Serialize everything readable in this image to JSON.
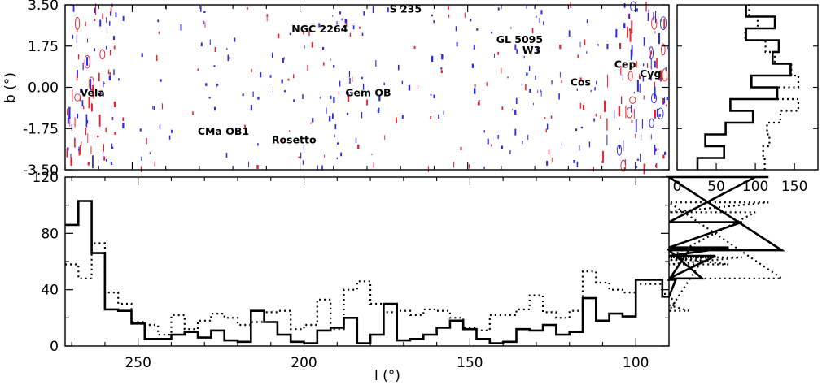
{
  "chart_data": [
    {
      "type": "contour map",
      "xlabel": "",
      "ylabel": "b (°)",
      "xlim": [
        270,
        90
      ],
      "ylim": [
        -3.5,
        3.5
      ],
      "y_ticks": [
        "3.50",
        "1.75",
        "0.00",
        "-1.75",
        "-3.50"
      ],
      "y_tick_values": [
        3.5,
        1.75,
        0,
        -1.75,
        -3.5
      ],
      "colors": {
        "series_a": "#e8202a",
        "series_b": "#2a2ae0"
      },
      "annotations": [
        {
          "text": "Vela",
          "l": 265.5,
          "b": -0.2
        },
        {
          "text": "NGC 2264",
          "l": 202.5,
          "b": 2.5
        },
        {
          "text": "S 235",
          "l": 173.3,
          "b": 3.35
        },
        {
          "text": "GL 5095",
          "l": 141.5,
          "b": 2.05
        },
        {
          "text": "W3",
          "l": 133.7,
          "b": 1.6
        },
        {
          "text": "Gem OB",
          "l": 186.5,
          "b": -0.2
        },
        {
          "text": "CMa OB1",
          "l": 230.5,
          "b": -1.85
        },
        {
          "text": "Rosetto",
          "l": 208.4,
          "b": -2.2
        },
        {
          "text": "Cos",
          "l": 119.4,
          "b": 0.25
        },
        {
          "text": "Cep",
          "l": 106.3,
          "b": 1.0
        },
        {
          "text": "Cyg",
          "l": 98.7,
          "b": 0.6
        }
      ]
    },
    {
      "type": "histogram",
      "xlabel": "",
      "ylabel": "",
      "xlim": [
        0,
        180
      ],
      "ylim": [
        -3.5,
        3.5
      ],
      "x_ticks": [
        "0",
        "50",
        "100",
        "150"
      ],
      "x_tick_values": [
        0,
        50,
        100,
        150
      ],
      "bin_edges_b": [
        -3.5,
        -3.0,
        -2.5,
        -2.0,
        -1.5,
        -1.0,
        -0.5,
        0.0,
        0.5,
        1.0,
        1.5,
        2.0,
        2.5,
        3.0,
        3.5
      ],
      "series": [
        {
          "style": "solid",
          "values": [
            26,
            60,
            36,
            62,
            97,
            68,
            128,
            95,
            145,
            122,
            130,
            88,
            125,
            88
          ]
        },
        {
          "style": "dotted",
          "values": [
            112,
            110,
            118,
            115,
            132,
            155,
            128,
            155,
            146,
            125,
            113,
            87,
            103,
            92
          ]
        }
      ]
    },
    {
      "type": "histogram",
      "xlabel": "l (°)",
      "ylabel": "",
      "xlim": [
        272,
        90
      ],
      "ylim": [
        0,
        120
      ],
      "x_ticks": [
        "250",
        "200",
        "150",
        "100"
      ],
      "x_tick_values": [
        250,
        200,
        150,
        100
      ],
      "y_ticks": [
        "0",
        "40",
        "80",
        "120"
      ],
      "y_tick_values": [
        0,
        40,
        80,
        120
      ],
      "bin_width_deg": 4,
      "bin_start_deg": 272,
      "series": [
        {
          "style": "solid",
          "values": [
            86,
            103,
            66,
            26,
            25,
            16,
            5,
            5,
            8,
            10,
            6,
            11,
            4,
            3,
            25,
            17,
            8,
            3,
            2,
            11,
            13,
            20,
            2,
            8,
            30,
            4,
            5,
            8,
            13,
            18,
            12,
            5,
            2,
            3,
            12,
            11,
            15,
            8,
            10,
            34,
            18,
            23,
            21,
            47,
            47,
            35,
            47,
            68,
            48,
            64,
            70,
            88,
            140,
            140,
            68
          ]
        },
        {
          "style": "dotted",
          "values": [
            58,
            48,
            73,
            38,
            30,
            17,
            15,
            8,
            22,
            12,
            18,
            23,
            20,
            15,
            17,
            24,
            25,
            12,
            15,
            33,
            12,
            40,
            46,
            30,
            24,
            25,
            22,
            26,
            25,
            20,
            13,
            11,
            22,
            22,
            26,
            36,
            24,
            20,
            25,
            53,
            45,
            40,
            38,
            44,
            44,
            37,
            29,
            25,
            61,
            63,
            58,
            63,
            95,
            102,
            48
          ]
        }
      ]
    }
  ]
}
